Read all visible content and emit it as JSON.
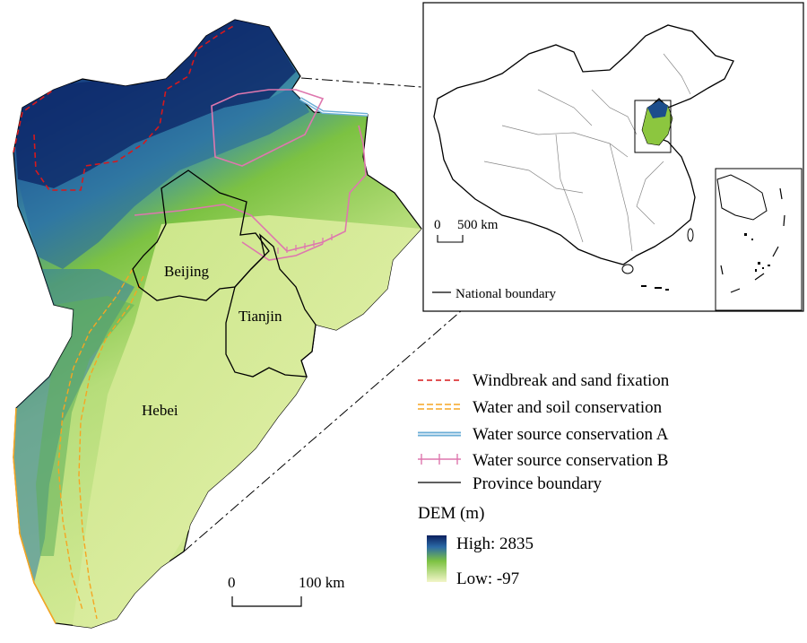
{
  "map": {
    "regions": {
      "beijing": "Beijing",
      "tianjin": "Tianjin",
      "hebei": "Hebei"
    },
    "main_scale": {
      "zero": "0",
      "distance": "100 km"
    }
  },
  "inset": {
    "scale": {
      "zero": "0",
      "distance": "500 km"
    },
    "boundary_label": "National boundary"
  },
  "legend": {
    "items": [
      {
        "label": "Windbreak and sand fixation",
        "color": "#d7191c",
        "style": "dashed"
      },
      {
        "label": "Water and soil conservation",
        "color": "#f5a623",
        "style": "double-dashed"
      },
      {
        "label": "Water source conservation A",
        "color": "#6baed6",
        "style": "double-solid"
      },
      {
        "label": "Water source conservation B",
        "color": "#de77ae",
        "style": "ticked"
      },
      {
        "label": "Province boundary",
        "color": "#000000",
        "style": "solid"
      }
    ],
    "dem": {
      "title": "DEM (m)",
      "high_label": "High: 2835",
      "low_label": "Low: -97",
      "high_color": "#0b1f5e",
      "mid_color": "#7cc242",
      "low_color": "#f2f5c8"
    }
  }
}
